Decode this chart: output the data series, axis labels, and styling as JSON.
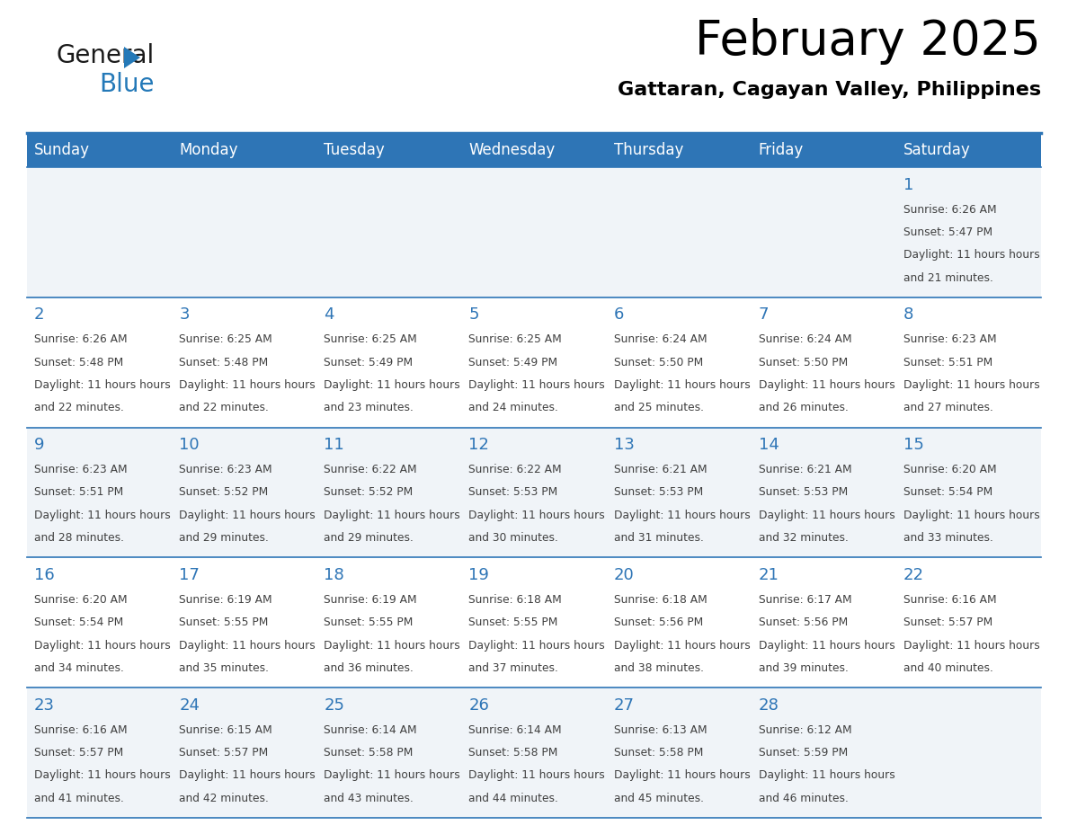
{
  "title": "February 2025",
  "subtitle": "Gattaran, Cagayan Valley, Philippines",
  "header_bg": "#2E75B6",
  "header_text_color": "#FFFFFF",
  "cell_bg_alt": "#F0F4F8",
  "cell_bg_white": "#FFFFFF",
  "day_names": [
    "Sunday",
    "Monday",
    "Tuesday",
    "Wednesday",
    "Thursday",
    "Friday",
    "Saturday"
  ],
  "text_color": "#404040",
  "number_color": "#2E75B6",
  "line_color": "#2E75B6",
  "days": [
    {
      "day": 1,
      "col": 6,
      "row": 0,
      "sunrise": "6:26 AM",
      "sunset": "5:47 PM",
      "daylight": "11 hours and 21 minutes."
    },
    {
      "day": 2,
      "col": 0,
      "row": 1,
      "sunrise": "6:26 AM",
      "sunset": "5:48 PM",
      "daylight": "11 hours and 22 minutes."
    },
    {
      "day": 3,
      "col": 1,
      "row": 1,
      "sunrise": "6:25 AM",
      "sunset": "5:48 PM",
      "daylight": "11 hours and 22 minutes."
    },
    {
      "day": 4,
      "col": 2,
      "row": 1,
      "sunrise": "6:25 AM",
      "sunset": "5:49 PM",
      "daylight": "11 hours and 23 minutes."
    },
    {
      "day": 5,
      "col": 3,
      "row": 1,
      "sunrise": "6:25 AM",
      "sunset": "5:49 PM",
      "daylight": "11 hours and 24 minutes."
    },
    {
      "day": 6,
      "col": 4,
      "row": 1,
      "sunrise": "6:24 AM",
      "sunset": "5:50 PM",
      "daylight": "11 hours and 25 minutes."
    },
    {
      "day": 7,
      "col": 5,
      "row": 1,
      "sunrise": "6:24 AM",
      "sunset": "5:50 PM",
      "daylight": "11 hours and 26 minutes."
    },
    {
      "day": 8,
      "col": 6,
      "row": 1,
      "sunrise": "6:23 AM",
      "sunset": "5:51 PM",
      "daylight": "11 hours and 27 minutes."
    },
    {
      "day": 9,
      "col": 0,
      "row": 2,
      "sunrise": "6:23 AM",
      "sunset": "5:51 PM",
      "daylight": "11 hours and 28 minutes."
    },
    {
      "day": 10,
      "col": 1,
      "row": 2,
      "sunrise": "6:23 AM",
      "sunset": "5:52 PM",
      "daylight": "11 hours and 29 minutes."
    },
    {
      "day": 11,
      "col": 2,
      "row": 2,
      "sunrise": "6:22 AM",
      "sunset": "5:52 PM",
      "daylight": "11 hours and 29 minutes."
    },
    {
      "day": 12,
      "col": 3,
      "row": 2,
      "sunrise": "6:22 AM",
      "sunset": "5:53 PM",
      "daylight": "11 hours and 30 minutes."
    },
    {
      "day": 13,
      "col": 4,
      "row": 2,
      "sunrise": "6:21 AM",
      "sunset": "5:53 PM",
      "daylight": "11 hours and 31 minutes."
    },
    {
      "day": 14,
      "col": 5,
      "row": 2,
      "sunrise": "6:21 AM",
      "sunset": "5:53 PM",
      "daylight": "11 hours and 32 minutes."
    },
    {
      "day": 15,
      "col": 6,
      "row": 2,
      "sunrise": "6:20 AM",
      "sunset": "5:54 PM",
      "daylight": "11 hours and 33 minutes."
    },
    {
      "day": 16,
      "col": 0,
      "row": 3,
      "sunrise": "6:20 AM",
      "sunset": "5:54 PM",
      "daylight": "11 hours and 34 minutes."
    },
    {
      "day": 17,
      "col": 1,
      "row": 3,
      "sunrise": "6:19 AM",
      "sunset": "5:55 PM",
      "daylight": "11 hours and 35 minutes."
    },
    {
      "day": 18,
      "col": 2,
      "row": 3,
      "sunrise": "6:19 AM",
      "sunset": "5:55 PM",
      "daylight": "11 hours and 36 minutes."
    },
    {
      "day": 19,
      "col": 3,
      "row": 3,
      "sunrise": "6:18 AM",
      "sunset": "5:55 PM",
      "daylight": "11 hours and 37 minutes."
    },
    {
      "day": 20,
      "col": 4,
      "row": 3,
      "sunrise": "6:18 AM",
      "sunset": "5:56 PM",
      "daylight": "11 hours and 38 minutes."
    },
    {
      "day": 21,
      "col": 5,
      "row": 3,
      "sunrise": "6:17 AM",
      "sunset": "5:56 PM",
      "daylight": "11 hours and 39 minutes."
    },
    {
      "day": 22,
      "col": 6,
      "row": 3,
      "sunrise": "6:16 AM",
      "sunset": "5:57 PM",
      "daylight": "11 hours and 40 minutes."
    },
    {
      "day": 23,
      "col": 0,
      "row": 4,
      "sunrise": "6:16 AM",
      "sunset": "5:57 PM",
      "daylight": "11 hours and 41 minutes."
    },
    {
      "day": 24,
      "col": 1,
      "row": 4,
      "sunrise": "6:15 AM",
      "sunset": "5:57 PM",
      "daylight": "11 hours and 42 minutes."
    },
    {
      "day": 25,
      "col": 2,
      "row": 4,
      "sunrise": "6:14 AM",
      "sunset": "5:58 PM",
      "daylight": "11 hours and 43 minutes."
    },
    {
      "day": 26,
      "col": 3,
      "row": 4,
      "sunrise": "6:14 AM",
      "sunset": "5:58 PM",
      "daylight": "11 hours and 44 minutes."
    },
    {
      "day": 27,
      "col": 4,
      "row": 4,
      "sunrise": "6:13 AM",
      "sunset": "5:58 PM",
      "daylight": "11 hours and 45 minutes."
    },
    {
      "day": 28,
      "col": 5,
      "row": 4,
      "sunrise": "6:12 AM",
      "sunset": "5:59 PM",
      "daylight": "11 hours and 46 minutes."
    }
  ],
  "logo_general_color": "#1a1a1a",
  "logo_blue_color": "#2479B8"
}
